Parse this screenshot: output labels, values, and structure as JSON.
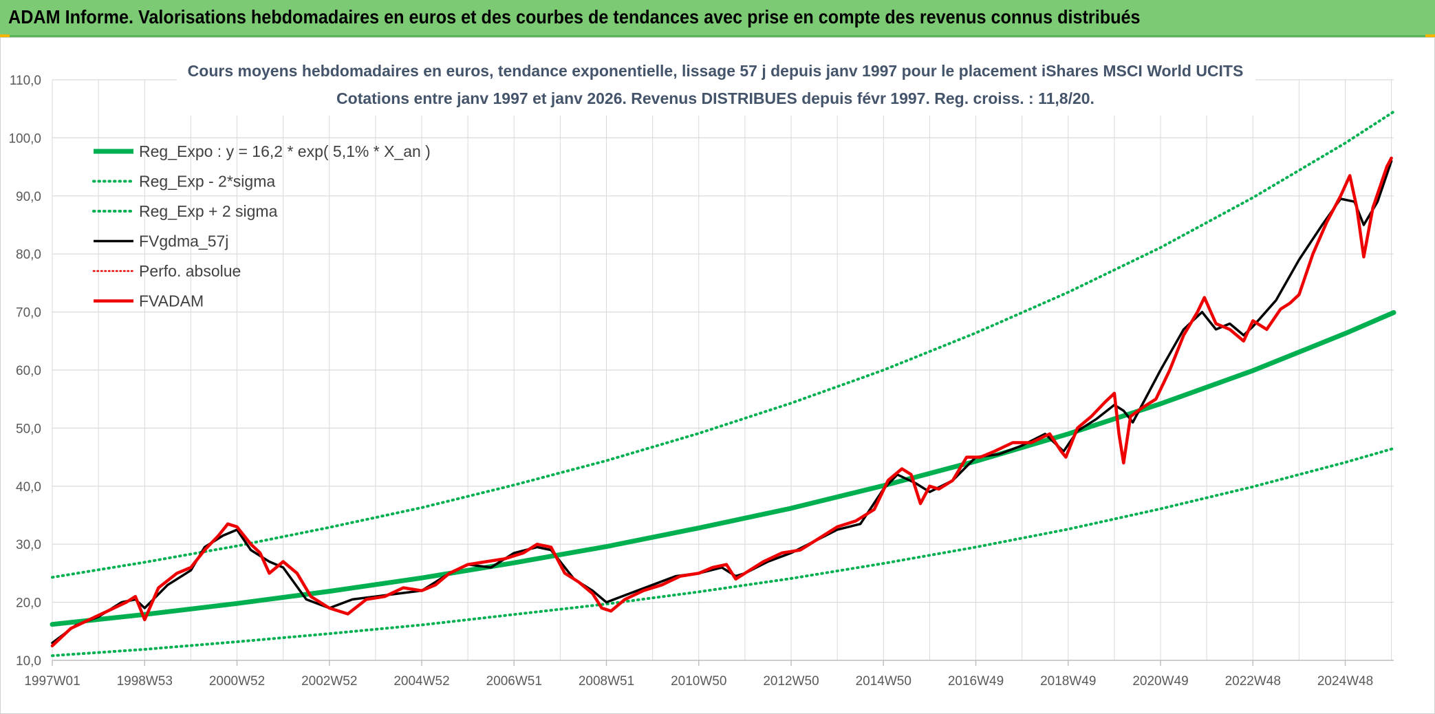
{
  "banner": {
    "title": "ADAM Informe. Valorisations hebdomadaires en euros et des courbes de tendances avec prise en compte des revenus connus distribués"
  },
  "colors": {
    "banner": "#7dca74",
    "regression": "#00b050",
    "fvgdma": "#000000",
    "fvadam": "#ee0000",
    "perfo": "#ee0000",
    "grid": "#d9d9d9",
    "title": "#44546a"
  },
  "chart_data": {
    "type": "line",
    "title": "Cours moyens hebdomadaires en euros, tendance exponentielle, lissage 57 j depuis janv 1997 pour le placement iShares MSCI World UCITS",
    "subtitle": "Cotations entre janv 1997 et janv 2026. Revenus DISTRIBUES depuis févr 1997. Reg. croiss. : 11,8/20.",
    "xlabel": "",
    "ylabel": "",
    "ylim": [
      10,
      110
    ],
    "xlim": [
      1997.0,
      2026.05
    ],
    "grid": true,
    "legend_position": "top-left",
    "y_ticks": [
      "10,0",
      "20,0",
      "30,0",
      "40,0",
      "50,0",
      "60,0",
      "70,0",
      "80,0",
      "90,0",
      "100,0",
      "110,0"
    ],
    "x_ticks": [
      {
        "label": "1997W01",
        "x": 1997.0
      },
      {
        "label": "1998W53",
        "x": 1999.0
      },
      {
        "label": "2000W52",
        "x": 2001.0
      },
      {
        "label": "2002W52",
        "x": 2003.0
      },
      {
        "label": "2004W52",
        "x": 2005.0
      },
      {
        "label": "2006W51",
        "x": 2007.0
      },
      {
        "label": "2008W51",
        "x": 2009.0
      },
      {
        "label": "2010W50",
        "x": 2011.0
      },
      {
        "label": "2012W50",
        "x": 2013.0
      },
      {
        "label": "2014W50",
        "x": 2015.0
      },
      {
        "label": "2016W49",
        "x": 2017.0
      },
      {
        "label": "2018W49",
        "x": 2019.0
      },
      {
        "label": "2020W49",
        "x": 2021.0
      },
      {
        "label": "2022W48",
        "x": 2023.0
      },
      {
        "label": "2024W48",
        "x": 2025.0
      }
    ],
    "series": [
      {
        "name": "Reg_Expo : y = 16,2 * exp( 5,1% *  X_an )",
        "style": "solid-thick",
        "color": "#00b050",
        "x": [
          1997.0,
          1999.0,
          2001.0,
          2003.0,
          2005.0,
          2007.0,
          2009.0,
          2011.0,
          2013.0,
          2015.0,
          2017.0,
          2019.0,
          2021.0,
          2023.0,
          2025.0,
          2026.05
        ],
        "y": [
          16.2,
          17.9,
          19.8,
          21.9,
          24.2,
          26.8,
          29.6,
          32.8,
          36.2,
          40.1,
          44.3,
          49.0,
          54.2,
          59.9,
          66.3,
          69.9
        ]
      },
      {
        "name": "Reg_Exp - 2*sigma",
        "style": "dotted",
        "color": "#00b050",
        "x": [
          1997.0,
          1999.0,
          2001.0,
          2003.0,
          2005.0,
          2007.0,
          2009.0,
          2011.0,
          2013.0,
          2015.0,
          2017.0,
          2019.0,
          2021.0,
          2023.0,
          2025.0,
          2026.05
        ],
        "y": [
          10.8,
          11.9,
          13.2,
          14.6,
          16.1,
          17.9,
          19.7,
          21.8,
          24.1,
          26.7,
          29.5,
          32.6,
          36.1,
          39.9,
          44.1,
          46.5
        ]
      },
      {
        "name": "Reg_Exp + 2 sigma",
        "style": "dotted",
        "color": "#00b050",
        "x": [
          1997.0,
          1999.0,
          2001.0,
          2003.0,
          2005.0,
          2007.0,
          2009.0,
          2011.0,
          2013.0,
          2015.0,
          2017.0,
          2019.0,
          2021.0,
          2023.0,
          2025.0,
          2026.05
        ],
        "y": [
          24.3,
          26.9,
          29.7,
          32.9,
          36.3,
          40.2,
          44.4,
          49.1,
          54.3,
          60.0,
          66.4,
          73.4,
          81.1,
          89.7,
          99.1,
          104.5
        ]
      },
      {
        "name": "FVgdma_57j",
        "style": "solid",
        "color": "#000000",
        "x": [
          1997.0,
          1997.5,
          1998.0,
          1998.5,
          1998.8,
          1999.0,
          1999.5,
          2000.0,
          2000.3,
          2000.7,
          2001.0,
          2001.3,
          2001.7,
          2002.0,
          2002.5,
          2003.0,
          2003.5,
          2004.0,
          2004.5,
          2005.0,
          2005.5,
          2006.0,
          2006.5,
          2007.0,
          2007.5,
          2007.8,
          2008.3,
          2008.7,
          2009.0,
          2009.5,
          2010.0,
          2010.5,
          2011.0,
          2011.5,
          2011.8,
          2012.0,
          2012.5,
          2013.0,
          2013.5,
          2014.0,
          2014.5,
          2015.0,
          2015.3,
          2015.7,
          2016.0,
          2016.5,
          2017.0,
          2017.5,
          2018.0,
          2018.5,
          2018.9,
          2019.2,
          2019.6,
          2020.0,
          2020.2,
          2020.4,
          2020.7,
          2021.0,
          2021.5,
          2021.9,
          2022.2,
          2022.5,
          2022.8,
          2023.0,
          2023.5,
          2024.0,
          2024.5,
          2024.9,
          2025.2,
          2025.4,
          2025.7,
          2026.0
        ],
        "y": [
          13.0,
          16.0,
          17.5,
          20.0,
          20.5,
          19.0,
          23.0,
          25.5,
          29.5,
          31.5,
          32.5,
          29.0,
          27.0,
          26.0,
          20.5,
          19.0,
          20.5,
          21.0,
          21.5,
          22.0,
          24.5,
          26.5,
          26.0,
          28.5,
          29.5,
          29.0,
          24.0,
          22.0,
          20.0,
          21.5,
          23.0,
          24.5,
          25.0,
          26.0,
          24.5,
          25.0,
          27.0,
          28.5,
          30.5,
          32.5,
          33.5,
          39.5,
          42.0,
          40.5,
          39.0,
          41.0,
          45.0,
          45.5,
          47.0,
          49.0,
          46.0,
          49.5,
          51.5,
          54.0,
          53.0,
          51.0,
          55.5,
          60.0,
          67.0,
          70.0,
          67.0,
          68.0,
          66.0,
          67.5,
          72.0,
          79.0,
          85.0,
          89.5,
          89.0,
          85.0,
          89.0,
          96.0
        ]
      },
      {
        "name": "Perfo. absolue",
        "style": "dotted-thin",
        "color": "#ee0000",
        "x": [],
        "y": []
      },
      {
        "name": "FVADAM",
        "style": "solid-thick",
        "color": "#ee0000",
        "x": [
          1997.0,
          1997.4,
          1997.8,
          1998.2,
          1998.6,
          1998.8,
          1999.0,
          1999.3,
          1999.7,
          2000.0,
          2000.3,
          2000.6,
          2000.8,
          2001.0,
          2001.3,
          2001.5,
          2001.7,
          2002.0,
          2002.3,
          2002.6,
          2003.0,
          2003.4,
          2003.8,
          2004.2,
          2004.6,
          2005.0,
          2005.3,
          2005.6,
          2006.0,
          2006.4,
          2006.8,
          2007.2,
          2007.5,
          2007.8,
          2008.1,
          2008.4,
          2008.7,
          2008.9,
          2009.1,
          2009.4,
          2009.8,
          2010.2,
          2010.6,
          2011.0,
          2011.3,
          2011.6,
          2011.8,
          2012.0,
          2012.4,
          2012.8,
          2013.2,
          2013.6,
          2014.0,
          2014.4,
          2014.8,
          2015.1,
          2015.4,
          2015.6,
          2015.8,
          2016.0,
          2016.2,
          2016.5,
          2016.8,
          2017.1,
          2017.4,
          2017.8,
          2018.2,
          2018.6,
          2018.85,
          2018.95,
          2019.2,
          2019.5,
          2019.8,
          2020.0,
          2020.1,
          2020.2,
          2020.35,
          2020.6,
          2020.9,
          2021.2,
          2021.5,
          2021.8,
          2021.95,
          2022.2,
          2022.5,
          2022.8,
          2023.0,
          2023.3,
          2023.6,
          2023.8,
          2024.0,
          2024.3,
          2024.6,
          2024.9,
          2025.1,
          2025.25,
          2025.4,
          2025.6,
          2025.9,
          2026.0
        ],
        "y": [
          12.5,
          15.5,
          17.0,
          18.5,
          20.0,
          21.0,
          17.0,
          22.5,
          25.0,
          26.0,
          29.0,
          31.5,
          33.5,
          33.0,
          30.0,
          28.5,
          25.0,
          27.0,
          25.0,
          21.0,
          19.0,
          18.0,
          20.5,
          21.0,
          22.5,
          22.0,
          23.0,
          25.0,
          26.5,
          27.0,
          27.5,
          28.5,
          30.0,
          29.5,
          25.0,
          23.5,
          21.5,
          19.0,
          18.5,
          20.5,
          22.0,
          23.0,
          24.5,
          25.0,
          26.0,
          26.5,
          24.0,
          25.0,
          27.0,
          28.5,
          29.0,
          31.0,
          33.0,
          34.0,
          36.0,
          41.0,
          43.0,
          42.0,
          37.0,
          40.0,
          39.5,
          41.0,
          45.0,
          45.0,
          46.0,
          47.5,
          47.5,
          49.0,
          46.0,
          45.0,
          50.0,
          52.0,
          54.5,
          56.0,
          49.0,
          44.0,
          52.0,
          53.5,
          55.0,
          60.0,
          66.0,
          70.0,
          72.5,
          68.0,
          67.0,
          65.0,
          68.5,
          67.0,
          70.5,
          71.5,
          73.0,
          80.0,
          85.5,
          90.0,
          93.5,
          88.0,
          79.5,
          88.0,
          95.0,
          96.5
        ]
      }
    ]
  }
}
